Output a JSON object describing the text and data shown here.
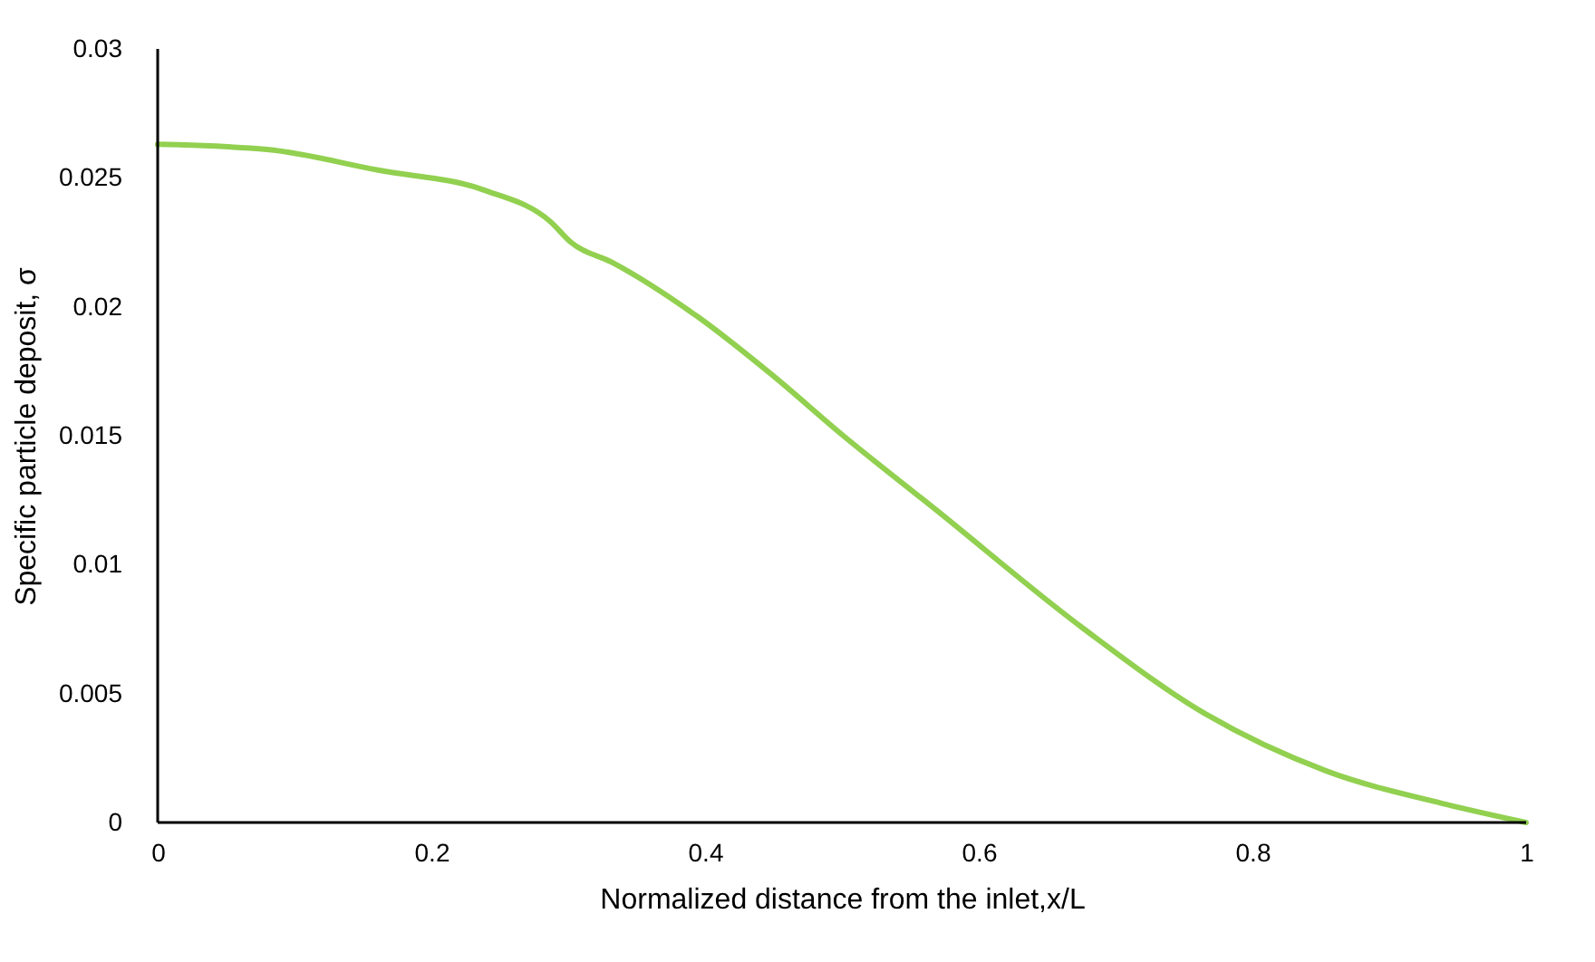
{
  "chart_data": {
    "type": "line",
    "xlabel": "Normalized distance from the inlet,x/L",
    "ylabel": "Specific particle deposit, σ",
    "x": [
      0,
      0.08,
      0.161,
      0.24,
      0.287,
      0.302,
      0.333,
      0.395,
      0.448,
      0.501,
      0.567,
      0.677,
      0.766,
      0.854,
      0.942,
      1.0
    ],
    "series": [
      {
        "color": "#92d050",
        "values": [
          0.0263,
          0.0261,
          0.0253,
          0.0245,
          0.0233,
          0.0225,
          0.0217,
          0.0196,
          0.0174,
          0.015,
          0.0122,
          0.0075,
          0.0042,
          0.002,
          0.0007,
          0.0
        ]
      }
    ],
    "xlim": [
      0,
      1
    ],
    "xticks": [
      0,
      0.2,
      0.4,
      0.6,
      0.8,
      1
    ],
    "ylim": [
      0,
      0.03
    ],
    "yticks": [
      0,
      0.005,
      0.01,
      0.015,
      0.02,
      0.025,
      0.03
    ],
    "grid": false,
    "marker": "none",
    "line_style": "solid"
  }
}
